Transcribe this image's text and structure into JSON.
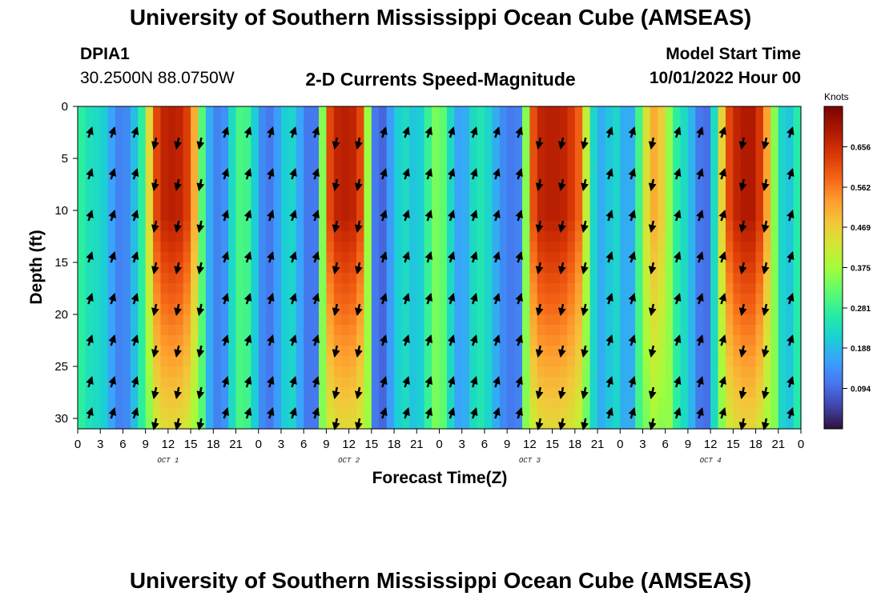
{
  "header": {
    "title": "University of Southern Mississippi Ocean Cube (AMSEAS)",
    "station_id": "DPIA1",
    "coords": "30.2500N  88.0750W",
    "plot_title": "2-D Currents Speed-Magnitude",
    "model_label": "Model Start Time",
    "model_time": "10/01/2022 Hour 00"
  },
  "footer": {
    "title": "University of Southern Mississippi Ocean Cube (AMSEAS)"
  },
  "chart_data": {
    "type": "heatmap",
    "title": "2-D Currents Speed-Magnitude",
    "xlabel": "Forecast Time(Z)",
    "ylabel": "Depth (ft)",
    "x_range_hours": [
      0,
      96
    ],
    "ylim": [
      0,
      31
    ],
    "y_ticks": [
      "0",
      "5",
      "10",
      "15",
      "20",
      "25",
      "30"
    ],
    "x_tick_labels": [
      "0",
      "3",
      "6",
      "9",
      "12",
      "15",
      "18",
      "21",
      "0",
      "3",
      "6",
      "9",
      "12",
      "15",
      "18",
      "21",
      "0",
      "3",
      "6",
      "9",
      "12",
      "15",
      "18",
      "21",
      "0",
      "3",
      "6",
      "9",
      "12",
      "15",
      "18",
      "21",
      "0"
    ],
    "date_labels": [
      {
        "label": "OCT 1",
        "hour": 12
      },
      {
        "label": "OCT 2",
        "hour": 36
      },
      {
        "label": "OCT 3",
        "hour": 60
      },
      {
        "label": "OCT 4",
        "hour": 84
      }
    ],
    "colorbar": {
      "unit": "Knots",
      "range": [
        0.0,
        0.75
      ],
      "ticks": [
        "0.094",
        "0.188",
        "0.281",
        "0.375",
        "0.469",
        "0.562",
        "0.656"
      ]
    },
    "speed_profile_hours": [
      0,
      1,
      2,
      3,
      4,
      5,
      6,
      7,
      8,
      9,
      10,
      11,
      12,
      13,
      14,
      15,
      16,
      17,
      18,
      19,
      20,
      21,
      22,
      23,
      24,
      25,
      26,
      27,
      28,
      29,
      30,
      31,
      32,
      33,
      34,
      35,
      36,
      37,
      38,
      39,
      40,
      41,
      42,
      43,
      44,
      45,
      46,
      47,
      48,
      49,
      50,
      51,
      52,
      53,
      54,
      55,
      56,
      57,
      58,
      59,
      60,
      61,
      62,
      63,
      64,
      65,
      66,
      67,
      68,
      69,
      70,
      71,
      72,
      73,
      74,
      75,
      76,
      77,
      78,
      79,
      80,
      81,
      82,
      83,
      84,
      85,
      86,
      87,
      88,
      89,
      90,
      91,
      92,
      93,
      94,
      95,
      96
    ],
    "speed_profile_knots": [
      0.28,
      0.26,
      0.22,
      0.24,
      0.18,
      0.14,
      0.1,
      0.16,
      0.22,
      0.32,
      0.58,
      0.66,
      0.68,
      0.68,
      0.66,
      0.6,
      0.42,
      0.2,
      0.14,
      0.1,
      0.18,
      0.28,
      0.32,
      0.26,
      0.16,
      0.1,
      0.12,
      0.18,
      0.24,
      0.2,
      0.12,
      0.1,
      0.12,
      0.58,
      0.66,
      0.68,
      0.68,
      0.66,
      0.58,
      0.16,
      0.06,
      0.12,
      0.18,
      0.24,
      0.22,
      0.18,
      0.24,
      0.32,
      0.36,
      0.28,
      0.18,
      0.14,
      0.2,
      0.26,
      0.24,
      0.2,
      0.14,
      0.12,
      0.1,
      0.14,
      0.56,
      0.66,
      0.68,
      0.68,
      0.68,
      0.66,
      0.62,
      0.56,
      0.26,
      0.18,
      0.16,
      0.24,
      0.2,
      0.14,
      0.2,
      0.38,
      0.5,
      0.52,
      0.42,
      0.3,
      0.24,
      0.22,
      0.14,
      0.08,
      0.12,
      0.34,
      0.58,
      0.66,
      0.68,
      0.7,
      0.68,
      0.6,
      0.44,
      0.26,
      0.18,
      0.22,
      0.3
    ]
  }
}
